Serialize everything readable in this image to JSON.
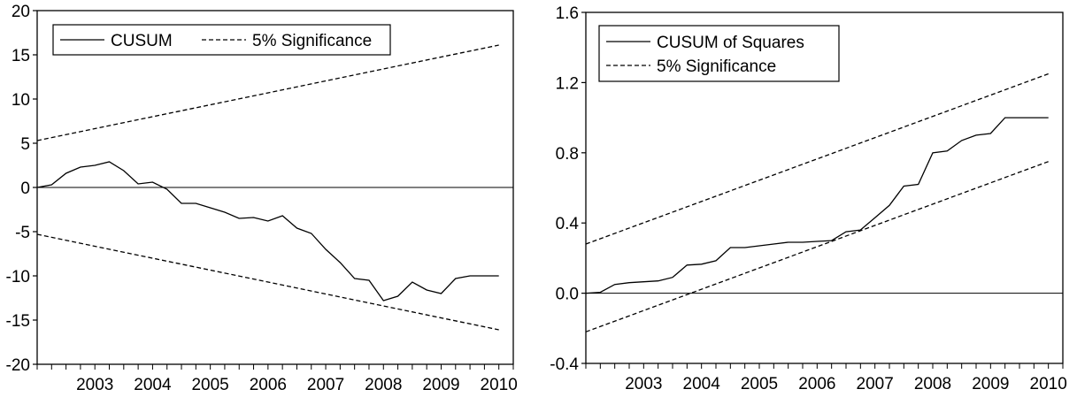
{
  "chart_data": [
    {
      "type": "line",
      "ylim": [
        -20,
        20
      ],
      "yticks": [
        -20,
        -15,
        -10,
        -5,
        0,
        5,
        10,
        15,
        20
      ],
      "xlim": [
        2002.5,
        2010.75
      ],
      "xtick_labels": [
        "2003",
        "2004",
        "2005",
        "2006",
        "2007",
        "2008",
        "2009",
        "2010"
      ],
      "zero_line": true,
      "grid": false,
      "legend_position": "top-left",
      "series": [
        {
          "name": "CUSUM",
          "style": "solid",
          "x": [
            2002.5,
            2002.75,
            2003.0,
            2003.25,
            2003.5,
            2003.75,
            2004.0,
            2004.25,
            2004.5,
            2004.75,
            2005.0,
            2005.25,
            2005.5,
            2005.75,
            2006.0,
            2006.25,
            2006.5,
            2006.75,
            2007.0,
            2007.25,
            2007.5,
            2007.75,
            2008.0,
            2008.25,
            2008.5,
            2008.75,
            2009.0,
            2009.25,
            2009.5,
            2009.75,
            2010.0,
            2010.25,
            2010.5
          ],
          "y": [
            0,
            0.3,
            1.6,
            2.3,
            2.5,
            2.9,
            1.9,
            0.4,
            0.6,
            -0.2,
            -1.8,
            -1.8,
            -2.3,
            -2.8,
            -3.5,
            -3.4,
            -3.8,
            -3.2,
            -4.6,
            -5.2,
            -7.0,
            -8.5,
            -10.3,
            -10.5,
            -12.8,
            -12.3,
            -10.7,
            -11.6,
            -12.0,
            -10.3,
            -10.0,
            -10.0,
            -10.0
          ]
        },
        {
          "name": "5% Significance",
          "style": "dashed",
          "x": [
            2002.5,
            2010.5
          ],
          "y": [
            5.3,
            16.1
          ]
        },
        {
          "name": "",
          "style": "dashed",
          "x": [
            2002.5,
            2010.5
          ],
          "y": [
            -5.3,
            -16.1
          ]
        }
      ]
    },
    {
      "type": "line",
      "ylim": [
        -0.4,
        1.6
      ],
      "yticks": [
        "-0.4",
        "0.0",
        "0.4",
        "0.8",
        "1.2",
        "1.6"
      ],
      "xlim": [
        2002.5,
        2010.75
      ],
      "xtick_labels": [
        "2003",
        "2004",
        "2005",
        "2006",
        "2007",
        "2008",
        "2009",
        "2010"
      ],
      "zero_line": true,
      "grid": false,
      "legend_position": "top-left",
      "series": [
        {
          "name": "CUSUM of Squares",
          "style": "solid",
          "x": [
            2002.5,
            2002.75,
            2003.0,
            2003.25,
            2003.5,
            2003.75,
            2004.0,
            2004.25,
            2004.5,
            2004.75,
            2005.0,
            2005.25,
            2005.5,
            2005.75,
            2006.0,
            2006.25,
            2006.5,
            2006.75,
            2007.0,
            2007.25,
            2007.5,
            2007.75,
            2008.0,
            2008.25,
            2008.5,
            2008.75,
            2009.0,
            2009.25,
            2009.5,
            2009.75,
            2010.0,
            2010.25,
            2010.5
          ],
          "y": [
            0.0,
            0.005,
            0.05,
            0.06,
            0.065,
            0.07,
            0.09,
            0.16,
            0.165,
            0.185,
            0.26,
            0.26,
            0.27,
            0.28,
            0.29,
            0.29,
            0.295,
            0.3,
            0.35,
            0.36,
            0.43,
            0.5,
            0.61,
            0.62,
            0.8,
            0.81,
            0.87,
            0.9,
            0.91,
            1.0,
            1.0,
            1.0,
            1.0
          ]
        },
        {
          "name": "5% Significance",
          "style": "dashed",
          "x": [
            2002.5,
            2010.5
          ],
          "y": [
            0.28,
            1.25
          ]
        },
        {
          "name": "",
          "style": "dashed",
          "x": [
            2002.5,
            2010.5
          ],
          "y": [
            -0.22,
            0.75
          ]
        }
      ]
    }
  ]
}
